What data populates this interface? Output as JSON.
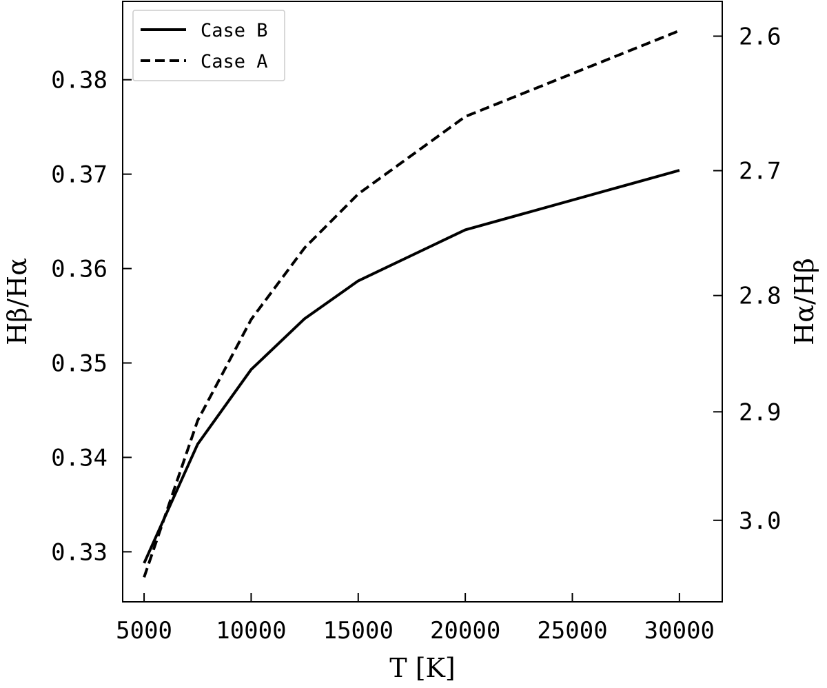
{
  "chart_data": {
    "type": "line",
    "xlabel": "T [K]",
    "ylabel": "Hβ/Hα",
    "ylabel_right": "Hα/Hβ",
    "xlim": [
      4000,
      32000
    ],
    "ylim": [
      0.3247,
      0.3883
    ],
    "x_ticks": [
      5000,
      10000,
      15000,
      20000,
      25000,
      30000
    ],
    "x_tick_labels": [
      "5000",
      "10000",
      "15000",
      "20000",
      "25000",
      "30000"
    ],
    "y_ticks": [
      0.33,
      0.34,
      0.35,
      0.36,
      0.37,
      0.38
    ],
    "y_tick_labels": [
      "0.33",
      "0.34",
      "0.35",
      "0.36",
      "0.37",
      "0.38"
    ],
    "y_right_ticks": [
      2.6,
      2.7,
      2.8,
      2.9,
      3.0
    ],
    "y_right_tick_labels": [
      "2.6",
      "2.7",
      "2.8",
      "2.9",
      "3.0"
    ],
    "legend_position": "top-left",
    "grid": false,
    "series": [
      {
        "name": "Case B",
        "style": "solid",
        "color": "#000000",
        "x": [
          5000,
          7500,
          10000,
          12500,
          15000,
          20000,
          30000
        ],
        "values": [
          0.3288,
          0.3414,
          0.3493,
          0.3547,
          0.3587,
          0.3641,
          0.3704
        ]
      },
      {
        "name": "Case A",
        "style": "dashed",
        "color": "#000000",
        "x": [
          5000,
          7500,
          10000,
          12500,
          15000,
          20000,
          30000
        ],
        "values": [
          0.3273,
          0.3439,
          0.3546,
          0.3622,
          0.3679,
          0.3761,
          0.3852
        ]
      }
    ]
  }
}
